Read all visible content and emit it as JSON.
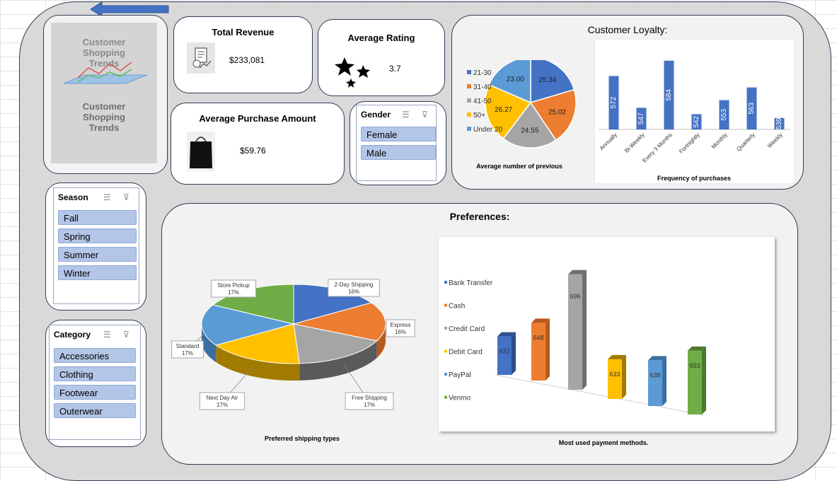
{
  "logo": {
    "line1": "Customer",
    "line2": "Shopping",
    "line3": "Trends"
  },
  "kpis": {
    "revenue": {
      "title": "Total Revenue",
      "value": "$233,081",
      "icon": "revenue-report-icon"
    },
    "rating": {
      "title": "Average Rating",
      "value": "3.7",
      "icon": "stars-icon"
    },
    "purchase": {
      "title": "Average Purchase Amount",
      "value": "$59.76",
      "icon": "shopping-bag-icon"
    }
  },
  "slicers": {
    "gender": {
      "title": "Gender",
      "items": [
        "Female",
        "Male"
      ]
    },
    "season": {
      "title": "Season",
      "items": [
        "Fall",
        "Spring",
        "Summer",
        "Winter"
      ]
    },
    "category": {
      "title": "Category",
      "items": [
        "Accessories",
        "Clothing",
        "Footwear",
        "Outerwear"
      ]
    }
  },
  "loyalty": {
    "title": "Customer Loyalty:"
  },
  "preferences": {
    "title": "Preferences:"
  },
  "colors": {
    "blue": "#4472c4",
    "orange": "#ed7d31",
    "gray": "#a5a5a5",
    "yellow": "#ffc000",
    "lightblue": "#5b9bd5",
    "green": "#70ad47",
    "accent_border": "#2f3b55",
    "slicer_item": "#b4c6e7"
  },
  "chart_data": [
    {
      "type": "pie",
      "title": "Average number of previous",
      "categories": [
        "21-30",
        "31-40",
        "41-50",
        "50+",
        "Under 20"
      ],
      "values": [
        25.34,
        25.02,
        24.55,
        26.27,
        23.0
      ],
      "legend": "left"
    },
    {
      "type": "bar",
      "title": "Frequency of purchases",
      "categories": [
        "Annually",
        "Bi-Weekly",
        "Every 3 Months",
        "Fortnightly",
        "Monthly",
        "Quarterly",
        "Weekly"
      ],
      "values": [
        572,
        547,
        584,
        542,
        553,
        563,
        539
      ],
      "ylim": [
        530,
        590
      ]
    },
    {
      "type": "pie",
      "title": "Preferred shipping types",
      "categories": [
        "2-Day Shipping",
        "Express",
        "Free Shipping",
        "Next Day Air",
        "Standard",
        "Store Pickup"
      ],
      "values": [
        16,
        16,
        17,
        17,
        17,
        17
      ],
      "labels": [
        "2-Day Shipping\n16%",
        "Express\n16%",
        "Free Shipping\n17%",
        "Next Day Air\n17%",
        "Standard\n17%",
        "Store Pickup\n17%"
      ],
      "style": "3d"
    },
    {
      "type": "bar",
      "title": "Most used payment methods.",
      "categories": [
        "Bank Transfer",
        "Cash",
        "Credit Card",
        "Debit Card",
        "PayPal",
        "Venmo"
      ],
      "values": [
        632,
        648,
        696,
        633,
        638,
        653
      ],
      "legend": "left",
      "style": "3d"
    }
  ]
}
